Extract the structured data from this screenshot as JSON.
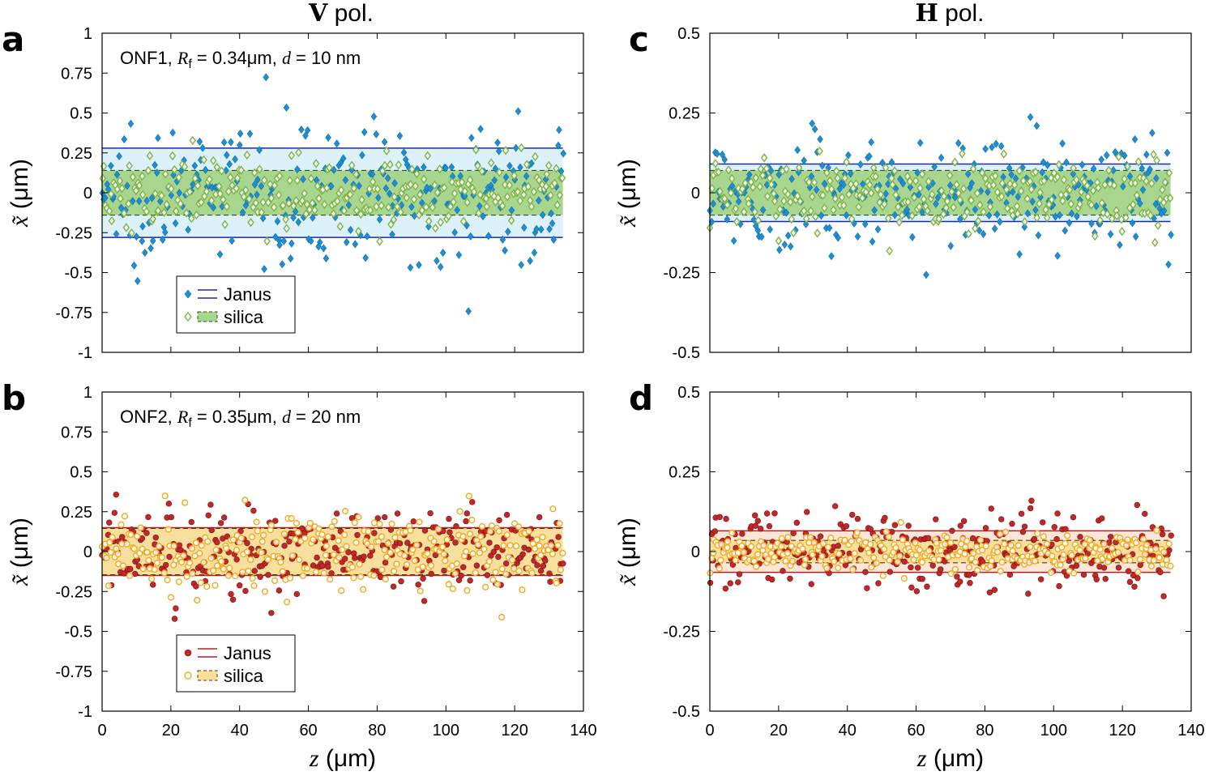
{
  "figure": {
    "column_titles": [
      {
        "bold": "V",
        "rest": " pol."
      },
      {
        "bold": "H",
        "rest": " pol."
      }
    ]
  },
  "colors": {
    "janus_blue": "#1f8fd4",
    "janus_band_blue": "#dcf1fa",
    "janus_line_blue": "#1a2d9e",
    "silica_green": "#7cb342",
    "silica_band_green": "#a8d68f",
    "janus_red": "#c0282a",
    "janus_line_red": "#b02025",
    "silica_band_orange": "#f7df9e",
    "silica_orange": "#f2aa1c"
  },
  "chart_data": [
    {
      "id": "a",
      "type": "scatter",
      "panel_label": "a",
      "annotation": {
        "prefix": "ONF1, ",
        "var": "R",
        "sub": "f",
        "mid": " = 0.34μm, ",
        "var2": "d",
        "suffix": " = 10 nm"
      },
      "xlabel": "z (μm)",
      "ylabel": "x̃ (μm)",
      "xlim": [
        0,
        140
      ],
      "ylim": [
        -1,
        1
      ],
      "xticks": [
        "0",
        "20",
        "40",
        "60",
        "80",
        "100",
        "120",
        "140"
      ],
      "yticks": [
        "1",
        "0.75",
        "0.5",
        "0.25",
        "0",
        "-0.25",
        "-0.5",
        "-0.75",
        "-1"
      ],
      "show_xtick_labels": false,
      "show_xlabel": false,
      "bands": {
        "janus": 0.28,
        "silica": 0.14
      },
      "legend": {
        "position": "bottom-left",
        "entries": [
          "Janus",
          "silica"
        ]
      },
      "series": [
        {
          "name": "Janus",
          "marker": "diamond-filled",
          "n_points": 270,
          "z_range": [
            0,
            134
          ],
          "spread_sd": 0.22,
          "envelope_half_width": 0.28
        },
        {
          "name": "silica",
          "marker": "diamond-open",
          "n_points": 270,
          "z_range": [
            0,
            134
          ],
          "spread_sd": 0.11,
          "envelope_half_width": 0.14
        }
      ]
    },
    {
      "id": "b",
      "type": "scatter",
      "panel_label": "b",
      "annotation": {
        "prefix": "ONF2, ",
        "var": "R",
        "sub": "f",
        "mid": " = 0.35μm, ",
        "var2": "d",
        "suffix": " = 20 nm"
      },
      "xlabel": "z (μm)",
      "ylabel": "x̃ (μm)",
      "xlim": [
        0,
        140
      ],
      "ylim": [
        -1,
        1
      ],
      "xticks": [
        "0",
        "20",
        "40",
        "60",
        "80",
        "100",
        "120",
        "140"
      ],
      "yticks": [
        "1",
        "0.75",
        "0.5",
        "0.25",
        "0",
        "-0.25",
        "-0.5",
        "-0.75",
        "-1"
      ],
      "show_xtick_labels": true,
      "show_xlabel": true,
      "bands": {
        "janus": 0.15,
        "silica": 0.145
      },
      "legend": {
        "position": "bottom-left",
        "entries": [
          "Janus",
          "silica"
        ]
      },
      "series": [
        {
          "name": "Janus",
          "marker": "circle-filled",
          "n_points": 300,
          "z_range": [
            0,
            134
          ],
          "spread_sd": 0.14,
          "envelope_half_width": 0.15
        },
        {
          "name": "silica",
          "marker": "circle-open",
          "n_points": 300,
          "z_range": [
            0,
            134
          ],
          "spread_sd": 0.13,
          "envelope_half_width": 0.145
        }
      ]
    },
    {
      "id": "c",
      "type": "scatter",
      "panel_label": "c",
      "xlabel": "z (μm)",
      "ylabel": "x̃ (μm)",
      "xlim": [
        0,
        140
      ],
      "ylim": [
        -0.5,
        0.5
      ],
      "xticks": [
        "0",
        "20",
        "40",
        "60",
        "80",
        "100",
        "120",
        "140"
      ],
      "yticks": [
        "0.5",
        "0.25",
        "0",
        "-0.25",
        "-0.5"
      ],
      "show_xtick_labels": false,
      "show_xlabel": false,
      "bands": {
        "janus": 0.09,
        "silica": 0.07
      },
      "series": [
        {
          "name": "Janus",
          "marker": "diamond-filled",
          "n_points": 270,
          "z_range": [
            0,
            134
          ],
          "spread_sd": 0.09,
          "envelope_half_width": 0.09
        },
        {
          "name": "silica",
          "marker": "diamond-open",
          "n_points": 270,
          "z_range": [
            0,
            134
          ],
          "spread_sd": 0.055,
          "envelope_half_width": 0.07
        }
      ]
    },
    {
      "id": "d",
      "type": "scatter",
      "panel_label": "d",
      "xlabel": "z (μm)",
      "ylabel": "x̃ (μm)",
      "xlim": [
        0,
        140
      ],
      "ylim": [
        -0.5,
        0.5
      ],
      "xticks": [
        "0",
        "20",
        "40",
        "60",
        "80",
        "100",
        "120",
        "140"
      ],
      "yticks": [
        "0.5",
        "0.25",
        "0",
        "-0.25",
        "-0.5"
      ],
      "show_xtick_labels": true,
      "show_xlabel": true,
      "bands": {
        "janus": 0.065,
        "silica": 0.035
      },
      "series": [
        {
          "name": "Janus",
          "marker": "circle-filled",
          "n_points": 300,
          "z_range": [
            0,
            134
          ],
          "spread_sd": 0.06,
          "envelope_half_width": 0.065
        },
        {
          "name": "silica",
          "marker": "circle-open",
          "n_points": 300,
          "z_range": [
            0,
            134
          ],
          "spread_sd": 0.028,
          "envelope_half_width": 0.035
        }
      ]
    }
  ]
}
